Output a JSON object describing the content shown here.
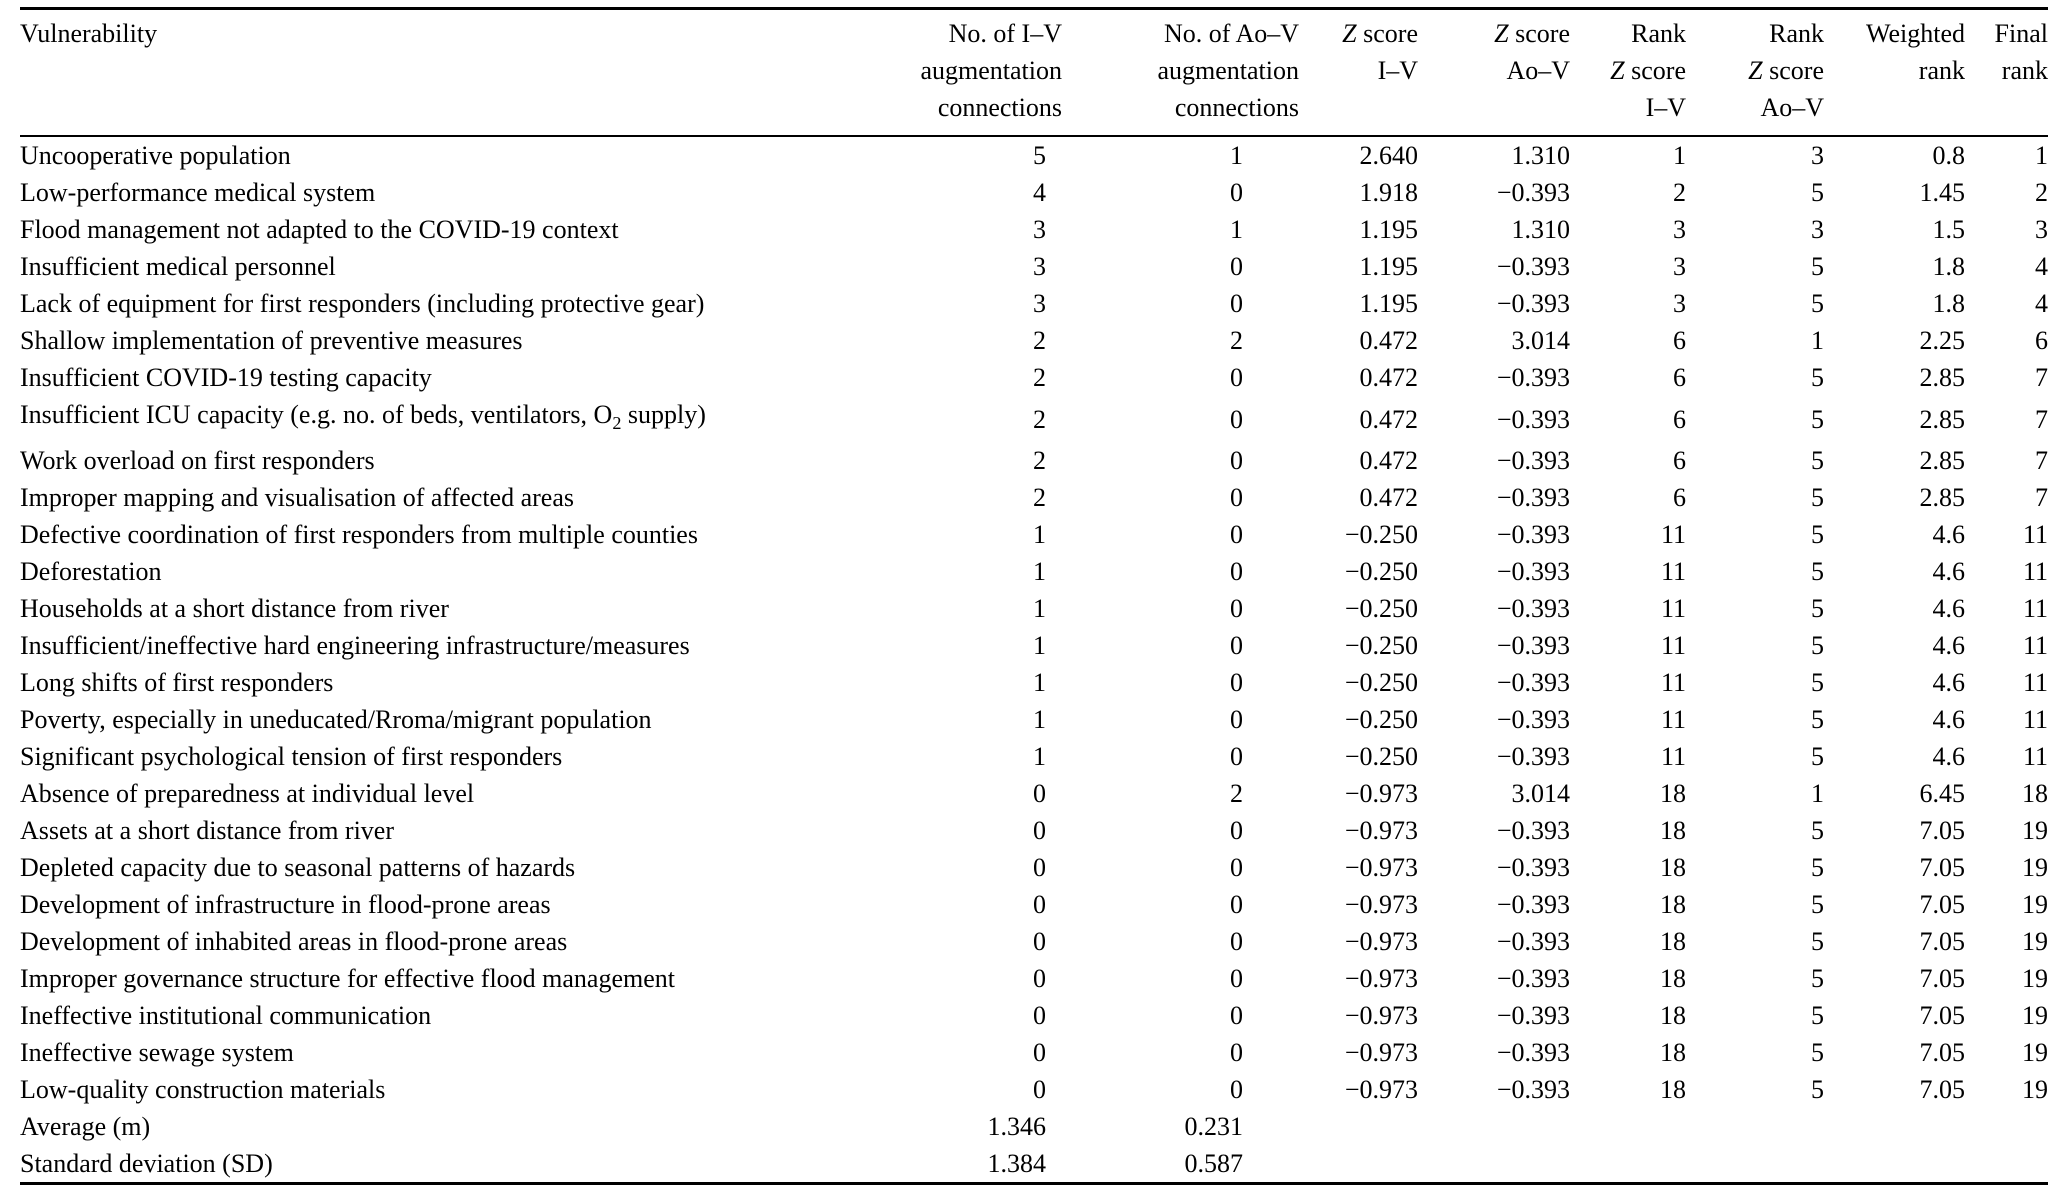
{
  "table": {
    "columns": [
      {
        "id": "vulnerability",
        "align": "left",
        "lines": [
          "Vulnerability"
        ]
      },
      {
        "id": "iv-connections",
        "align": "right",
        "lines": [
          "No. of I–V",
          "augmentation",
          "connections"
        ]
      },
      {
        "id": "aov-connections",
        "align": "right",
        "lines": [
          "No. of Ao–V",
          "augmentation",
          "connections"
        ]
      },
      {
        "id": "z-score-iv",
        "align": "right",
        "lines": [
          "Z score",
          "I–V"
        ]
      },
      {
        "id": "z-score-aov",
        "align": "right",
        "lines": [
          "Z score",
          "Ao–V"
        ]
      },
      {
        "id": "rank-z-score-iv",
        "align": "right",
        "lines": [
          "Rank",
          "Z score",
          "I–V"
        ]
      },
      {
        "id": "rank-z-score-aov",
        "align": "right",
        "lines": [
          "Rank",
          "Z score",
          "Ao–V"
        ]
      },
      {
        "id": "weighted-rank",
        "align": "right",
        "lines": [
          "Weighted",
          "rank"
        ]
      },
      {
        "id": "final-rank",
        "align": "right",
        "lines": [
          "Final",
          "rank"
        ]
      }
    ],
    "rows": [
      [
        "Uncooperative population",
        "5",
        "1",
        "2.640",
        "1.310",
        "1",
        "3",
        "0.8",
        "1"
      ],
      [
        "Low-performance medical system",
        "4",
        "0",
        "1.918",
        "−0.393",
        "2",
        "5",
        "1.45",
        "2"
      ],
      [
        "Flood management not adapted to the COVID-19 context",
        "3",
        "1",
        "1.195",
        "1.310",
        "3",
        "3",
        "1.5",
        "3"
      ],
      [
        "Insufficient medical personnel",
        "3",
        "0",
        "1.195",
        "−0.393",
        "3",
        "5",
        "1.8",
        "4"
      ],
      [
        "Lack of equipment for first responders (including protective gear)",
        "3",
        "0",
        "1.195",
        "−0.393",
        "3",
        "5",
        "1.8",
        "4"
      ],
      [
        "Shallow implementation of preventive measures",
        "2",
        "2",
        "0.472",
        "3.014",
        "6",
        "1",
        "2.25",
        "6"
      ],
      [
        "Insufficient COVID-19 testing capacity",
        "2",
        "0",
        "0.472",
        "−0.393",
        "6",
        "5",
        "2.85",
        "7"
      ],
      [
        "Insufficient ICU capacity (e.g. no. of beds, ventilators, O2 supply)",
        "2",
        "0",
        "0.472",
        "−0.393",
        "6",
        "5",
        "2.85",
        "7"
      ],
      [
        "Work overload on first responders",
        "2",
        "0",
        "0.472",
        "−0.393",
        "6",
        "5",
        "2.85",
        "7"
      ],
      [
        "Improper mapping and visualisation of affected areas",
        "2",
        "0",
        "0.472",
        "−0.393",
        "6",
        "5",
        "2.85",
        "7"
      ],
      [
        "Defective coordination of first responders from multiple counties",
        "1",
        "0",
        "−0.250",
        "−0.393",
        "11",
        "5",
        "4.6",
        "11"
      ],
      [
        "Deforestation",
        "1",
        "0",
        "−0.250",
        "−0.393",
        "11",
        "5",
        "4.6",
        "11"
      ],
      [
        "Households at a short distance from river",
        "1",
        "0",
        "−0.250",
        "−0.393",
        "11",
        "5",
        "4.6",
        "11"
      ],
      [
        "Insufficient/ineffective hard engineering infrastructure/measures",
        "1",
        "0",
        "−0.250",
        "−0.393",
        "11",
        "5",
        "4.6",
        "11"
      ],
      [
        "Long shifts of first responders",
        "1",
        "0",
        "−0.250",
        "−0.393",
        "11",
        "5",
        "4.6",
        "11"
      ],
      [
        "Poverty, especially in uneducated/Rroma/migrant population",
        "1",
        "0",
        "−0.250",
        "−0.393",
        "11",
        "5",
        "4.6",
        "11"
      ],
      [
        "Significant psychological tension of first responders",
        "1",
        "0",
        "−0.250",
        "−0.393",
        "11",
        "5",
        "4.6",
        "11"
      ],
      [
        "Absence of preparedness at individual level",
        "0",
        "2",
        "−0.973",
        "3.014",
        "18",
        "1",
        "6.45",
        "18"
      ],
      [
        "Assets at a short distance from river",
        "0",
        "0",
        "−0.973",
        "−0.393",
        "18",
        "5",
        "7.05",
        "19"
      ],
      [
        "Depleted capacity due to seasonal patterns of hazards",
        "0",
        "0",
        "−0.973",
        "−0.393",
        "18",
        "5",
        "7.05",
        "19"
      ],
      [
        "Development of infrastructure in flood-prone areas",
        "0",
        "0",
        "−0.973",
        "−0.393",
        "18",
        "5",
        "7.05",
        "19"
      ],
      [
        "Development of inhabited areas in flood-prone areas",
        "0",
        "0",
        "−0.973",
        "−0.393",
        "18",
        "5",
        "7.05",
        "19"
      ],
      [
        "Improper governance structure for effective flood management",
        "0",
        "0",
        "−0.973",
        "−0.393",
        "18",
        "5",
        "7.05",
        "19"
      ],
      [
        "Ineffective institutional communication",
        "0",
        "0",
        "−0.973",
        "−0.393",
        "18",
        "5",
        "7.05",
        "19"
      ],
      [
        "Ineffective sewage system",
        "0",
        "0",
        "−0.973",
        "−0.393",
        "18",
        "5",
        "7.05",
        "19"
      ],
      [
        "Low-quality construction materials",
        "0",
        "0",
        "−0.973",
        "−0.393",
        "18",
        "5",
        "7.05",
        "19"
      ]
    ],
    "summary_rows": [
      [
        "Average (m)",
        "1.346",
        "0.231",
        "",
        "",
        "",
        "",
        "",
        ""
      ],
      [
        "Standard deviation (SD)",
        "1.384",
        "0.587",
        "",
        "",
        "",
        "",
        "",
        ""
      ]
    ]
  }
}
